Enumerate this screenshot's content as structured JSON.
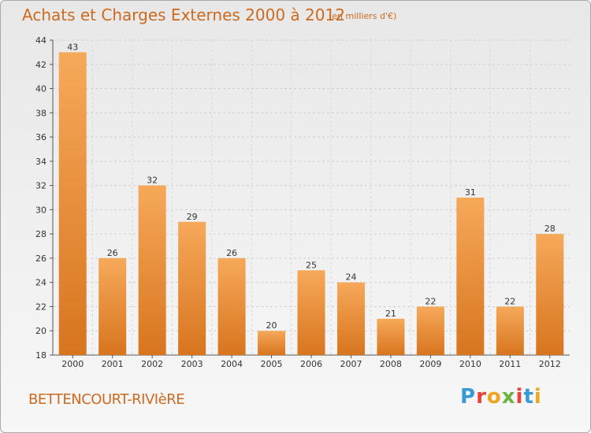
{
  "header": {
    "title": "Achats et Charges Externes 2000 à 2012",
    "subtitle": "(en milliers d'€)"
  },
  "footer": {
    "city": "BETTENCOURT-RIVIèRE",
    "logo_text": "Proxiti",
    "logo_colors": [
      "#3a9ad9",
      "#e8413c",
      "#f0a51e",
      "#6cb33f",
      "#e8413c",
      "#3a9ad9",
      "#f0a51e"
    ]
  },
  "colors": {
    "bar_light": "#f6a95a",
    "bar_dark": "#d8751f",
    "text_accent": "#cc6a1f"
  },
  "chart_data": {
    "type": "bar",
    "categories": [
      "2000",
      "2001",
      "2002",
      "2003",
      "2004",
      "2005",
      "2006",
      "2007",
      "2008",
      "2009",
      "2010",
      "2011",
      "2012"
    ],
    "values": [
      43,
      26,
      32,
      29,
      26,
      20,
      25,
      24,
      21,
      22,
      31,
      22,
      28
    ],
    "ylim": [
      18,
      44
    ],
    "yticks": [
      18,
      20,
      22,
      24,
      26,
      28,
      30,
      32,
      34,
      36,
      38,
      40,
      42,
      44
    ],
    "grid": true,
    "title": "Achats et Charges Externes 2000 à 2012",
    "xlabel": "",
    "ylabel": ""
  }
}
